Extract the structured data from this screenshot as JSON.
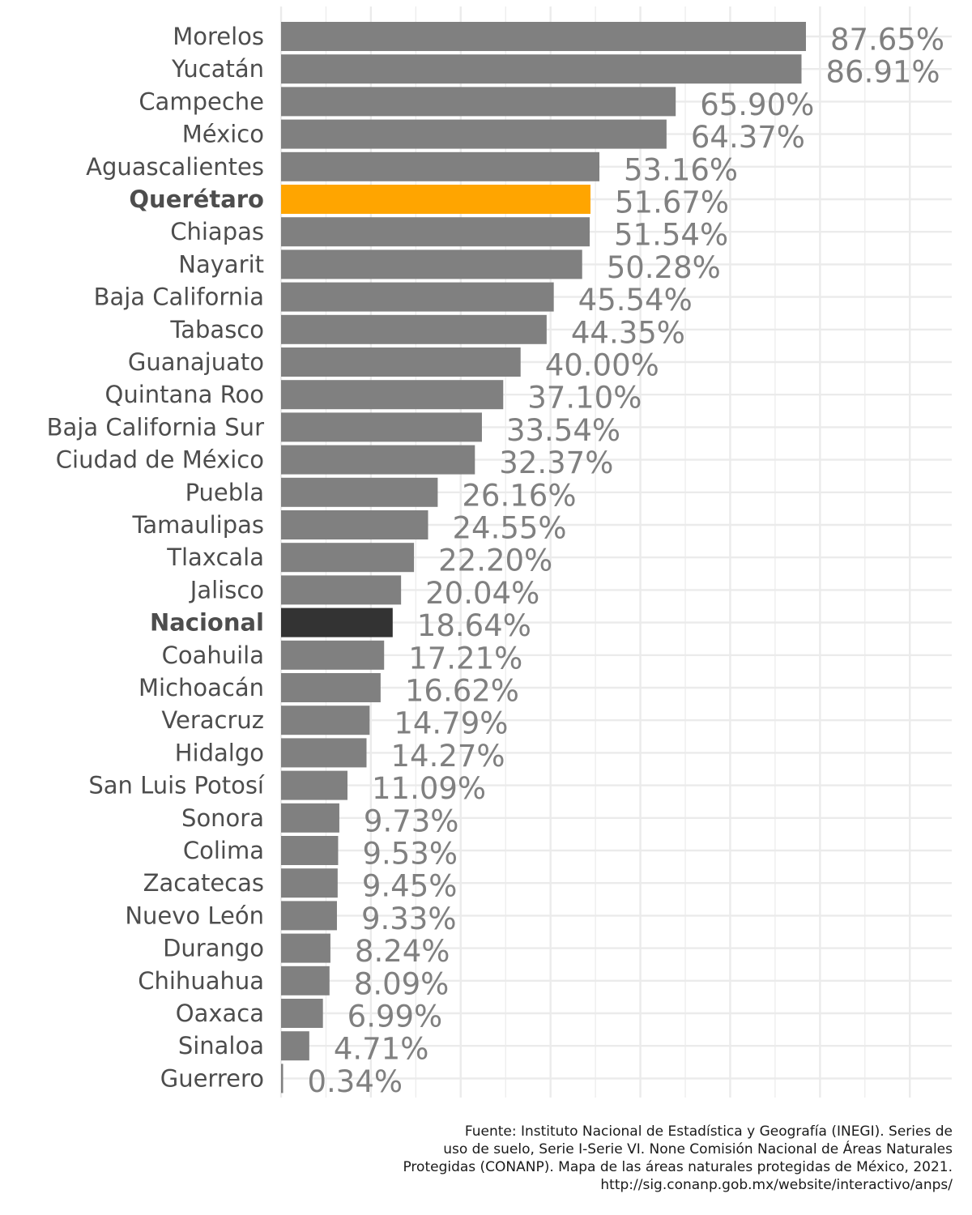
{
  "chart_data": {
    "type": "bar",
    "orientation": "horizontal",
    "categories": [
      "Morelos",
      "Yucatán",
      "Campeche",
      "México",
      "Aguascalientes",
      "Querétaro",
      "Chiapas",
      "Nayarit",
      "Baja California",
      "Tabasco",
      "Guanajuato",
      "Quintana Roo",
      "Baja California Sur",
      "Ciudad de México",
      "Puebla",
      "Tamaulipas",
      "Tlaxcala",
      "Jalisco",
      "Nacional",
      "Coahuila",
      "Michoacán",
      "Veracruz",
      "Hidalgo",
      "San Luis Potosí",
      "Sonora",
      "Colima",
      "Zacatecas",
      "Nuevo León",
      "Durango",
      "Chihuahua",
      "Oaxaca",
      "Sinaloa",
      "Guerrero"
    ],
    "values": [
      87.65,
      86.91,
      65.9,
      64.37,
      53.16,
      51.67,
      51.54,
      50.28,
      45.54,
      44.35,
      40.0,
      37.1,
      33.54,
      32.37,
      26.16,
      24.55,
      22.2,
      20.04,
      18.64,
      17.21,
      16.62,
      14.79,
      14.27,
      11.09,
      9.73,
      9.53,
      9.45,
      9.33,
      8.24,
      8.09,
      6.99,
      4.71,
      0.34
    ],
    "value_labels": [
      "87.65%",
      "86.91%",
      "65.90%",
      "64.37%",
      "53.16%",
      "51.67%",
      "51.54%",
      "50.28%",
      "45.54%",
      "44.35%",
      "40.00%",
      "37.10%",
      "33.54%",
      "32.37%",
      "26.16%",
      "24.55%",
      "22.20%",
      "20.04%",
      "18.64%",
      "17.21%",
      "16.62%",
      "14.79%",
      "14.27%",
      "11.09%",
      "9.73%",
      "9.53%",
      "9.45%",
      "9.33%",
      "8.24%",
      "8.09%",
      "6.99%",
      "4.71%",
      "0.34%"
    ],
    "highlight": {
      "Querétaro": "#ffa500",
      "Nacional": "#333333"
    },
    "bold_categories": [
      "Querétaro",
      "Nacional"
    ],
    "default_color": "#808080",
    "xlim": [
      0,
      112
    ],
    "grid": true,
    "legend": "none",
    "title": "",
    "xlabel": "",
    "ylabel": ""
  },
  "source_lines": [
    "Fuente: Instituto Nacional de Estadística y Geografía (INEGI). Series de",
    "uso de suelo, Serie I-Serie VI. None Comisión Nacional de Áreas Naturales",
    "Protegidas (CONANP). Mapa de las áreas naturales protegidas de México, 2021.",
    "http://sig.conanp.gob.mx/website/interactivo/anps/"
  ]
}
